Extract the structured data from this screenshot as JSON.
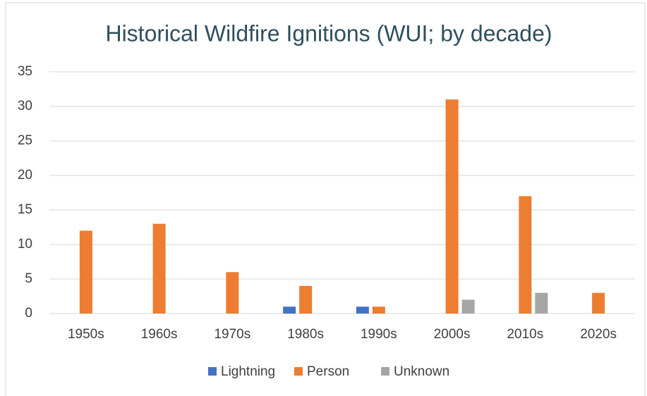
{
  "chart_data": {
    "type": "bar",
    "title": "Historical Wildfire Ignitions (WUI; by decade)",
    "categories": [
      "1950s",
      "1960s",
      "1970s",
      "1980s",
      "1990s",
      "2000s",
      "2010s",
      "2020s"
    ],
    "series": [
      {
        "name": "Lightning",
        "color": "#4472c4",
        "values": [
          0,
          0,
          0,
          1,
          1,
          0,
          0,
          0
        ]
      },
      {
        "name": "Person",
        "color": "#ed7d31",
        "values": [
          12,
          13,
          6,
          4,
          1,
          31,
          17,
          3
        ]
      },
      {
        "name": "Unknown",
        "color": "#a5a5a5",
        "values": [
          0,
          0,
          0,
          0,
          0,
          2,
          3,
          0
        ]
      }
    ],
    "ylim": [
      0,
      35
    ],
    "yticks": [
      0,
      5,
      10,
      15,
      20,
      25,
      30,
      35
    ],
    "grid": true,
    "legend": "bottom"
  }
}
